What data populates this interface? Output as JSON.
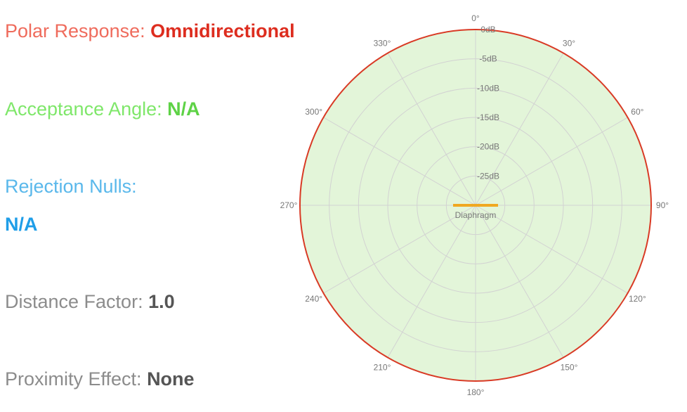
{
  "info": {
    "polar_label": "Polar Response: ",
    "polar_value": "Omnidirectional",
    "acceptance_label": "Acceptance Angle: ",
    "acceptance_value": "N/A",
    "rejection_label": "Rejection Nulls:",
    "rejection_value": "N/A",
    "distance_label": "Distance Factor: ",
    "distance_value": "1.0",
    "proximity_label": "Proximity Effect: ",
    "proximity_value": "None"
  },
  "polar_plot": {
    "angle_labels": [
      "0°",
      "30°",
      "60°",
      "90°",
      "120°",
      "150°",
      "180°",
      "210°",
      "240°",
      "270°",
      "300°",
      "330°"
    ],
    "angles_deg": [
      0,
      30,
      60,
      90,
      120,
      150,
      180,
      210,
      240,
      270,
      300,
      330
    ],
    "db_rings": [
      0,
      -5,
      -10,
      -15,
      -20,
      -25
    ],
    "db_labels": [
      "0dB",
      "-5dB",
      "-10dB",
      "-15dB",
      "-20dB",
      "-25dB"
    ],
    "db_min": -30,
    "db_max": 0,
    "response_db": 0,
    "diaphragm_label": "Diaphragm",
    "colors": {
      "pattern_fill": "#e3f5d9",
      "pattern_stroke": "#d93a25",
      "grid": "#d2d2d2",
      "diaphragm": "#f0a820"
    }
  }
}
